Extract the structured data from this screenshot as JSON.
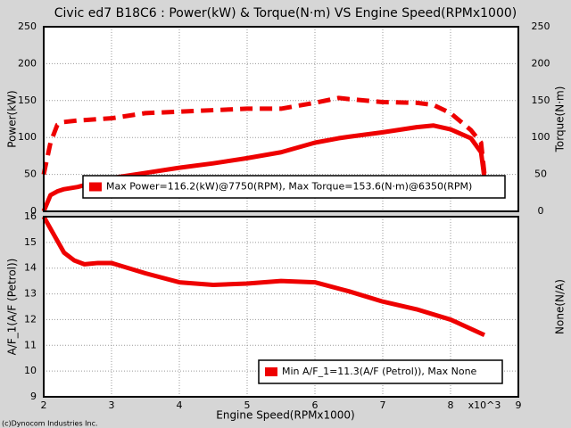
{
  "title": "Civic ed7 B18C6 : Power(kW) & Torque(N·m) VS Engine Speed(RPMx1000)",
  "x_label": "Engine Speed(RPMx1000)",
  "x_unit_note": "x10^3",
  "footer": "(c)Dynocom Industries Inc.",
  "chart_data": [
    {
      "type": "line",
      "x": [
        2.0,
        2.1,
        2.2,
        2.3,
        2.5,
        3,
        3.5,
        4,
        4.5,
        5,
        5.5,
        6,
        6.35,
        6.5,
        7,
        7.5,
        7.75,
        8,
        8.3,
        8.45,
        8.5
      ],
      "series": [
        {
          "color": "#ee0000",
          "values": [
            0,
            22,
            27,
            30,
            33,
            45,
            52,
            59,
            65,
            72,
            80,
            93,
            99,
            101,
            107,
            114,
            116.2,
            111,
            99,
            80,
            45
          ]
        },
        {
          "color": "#ee0000",
          "dashed": true,
          "axis": "y2",
          "values": [
            50,
            93,
            117,
            121,
            123,
            126,
            133,
            135,
            137,
            139,
            139,
            147,
            153.6,
            152,
            148,
            147,
            144,
            133,
            110,
            93,
            50
          ]
        }
      ],
      "ylabel": "Power(kW)",
      "y2label": "Torque(N·m)",
      "xlim": [
        2,
        9
      ],
      "xticks": [
        2,
        3,
        4,
        5,
        6,
        7,
        8,
        9
      ],
      "x_tick_labels": false,
      "ylim": [
        0,
        250
      ],
      "yticks": [
        0,
        50,
        100,
        150,
        200,
        250
      ],
      "y2lim": [
        0,
        250
      ],
      "y2ticks": [
        0,
        50,
        100,
        150,
        200,
        250
      ],
      "grid": true,
      "legend_text": "Max Power=116.2(kW)@7750(RPM), Max Torque=153.6(N·m)@6350(RPM)"
    },
    {
      "type": "line",
      "x": [
        2.0,
        2.15,
        2.3,
        2.45,
        2.6,
        2.8,
        3,
        3.5,
        4,
        4.5,
        5,
        5.5,
        6,
        6.5,
        7,
        7.5,
        8,
        8.5
      ],
      "series": [
        {
          "color": "#ee0000",
          "values": [
            16,
            15.3,
            14.6,
            14.3,
            14.15,
            14.2,
            14.2,
            13.8,
            13.45,
            13.35,
            13.4,
            13.5,
            13.45,
            13.1,
            12.7,
            12.4,
            12.0,
            11.4
          ]
        }
      ],
      "ylabel": "A/F_1(A/F (Petrol))",
      "y2label": "None(N/A)",
      "xlim": [
        2,
        9
      ],
      "xticks": [
        2,
        3,
        4,
        5,
        6,
        7,
        8,
        9
      ],
      "x_tick_labels": true,
      "ylim": [
        9,
        16
      ],
      "yticks": [
        9,
        10,
        11,
        12,
        13,
        14,
        15,
        16
      ],
      "grid": true,
      "legend_text": "Min A/F_1=11.3(A/F (Petrol)), Max None"
    }
  ]
}
